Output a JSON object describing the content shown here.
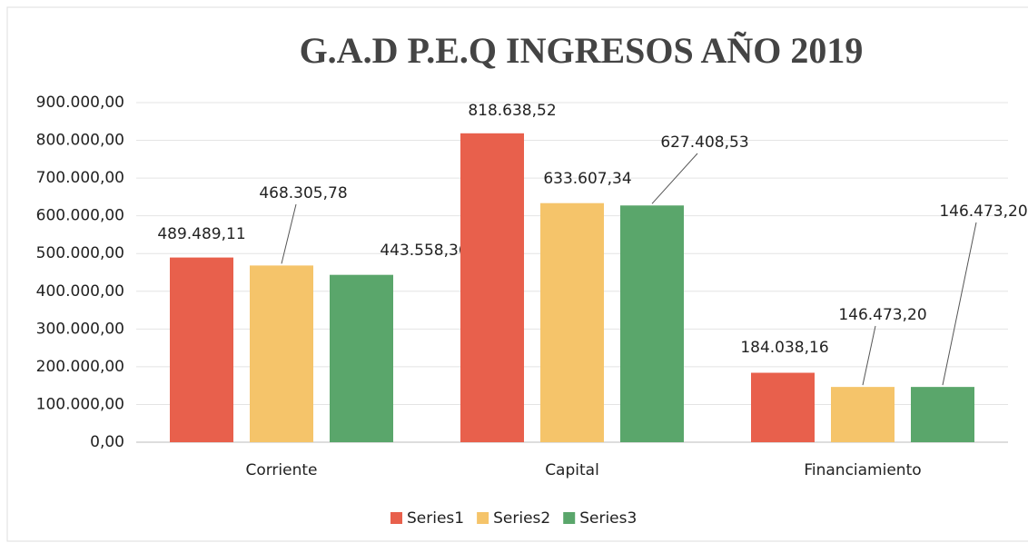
{
  "chart_data": {
    "type": "bar",
    "title": "G.A.D P.E.Q INGRESOS AÑO 2019",
    "categories": [
      "Corriente",
      "Capital",
      "Financiamiento"
    ],
    "series": [
      {
        "name": "Series1",
        "color": "#e8604c",
        "values": [
          489489.11,
          818638.52,
          184038.16
        ],
        "value_labels": [
          "489.489,11",
          "818.638,52",
          "184.038,16"
        ]
      },
      {
        "name": "Series2",
        "color": "#f5c46a",
        "values": [
          468305.78,
          633607.34,
          146473.2
        ],
        "value_labels": [
          "468.305,78",
          "633.607,34",
          "146.473,20"
        ]
      },
      {
        "name": "Series3",
        "color": "#5aa66b",
        "values": [
          443558.36,
          627408.53,
          146473.2
        ],
        "value_labels": [
          "443.558,36",
          "627.408,53",
          "146.473,20"
        ]
      }
    ],
    "ylim": [
      0,
      900000
    ],
    "yticks": [
      {
        "value": 0,
        "label": "0,00"
      },
      {
        "value": 100000,
        "label": "100.000,00"
      },
      {
        "value": 200000,
        "label": "200.000,00"
      },
      {
        "value": 300000,
        "label": "300.000,00"
      },
      {
        "value": 400000,
        "label": "400.000,00"
      },
      {
        "value": 500000,
        "label": "500.000,00"
      },
      {
        "value": 600000,
        "label": "600.000,00"
      },
      {
        "value": 700000,
        "label": "700.000,00"
      },
      {
        "value": 800000,
        "label": "800.000,00"
      },
      {
        "value": 900000,
        "label": "900.000,00"
      }
    ],
    "grid": true,
    "legend": "bottom"
  }
}
